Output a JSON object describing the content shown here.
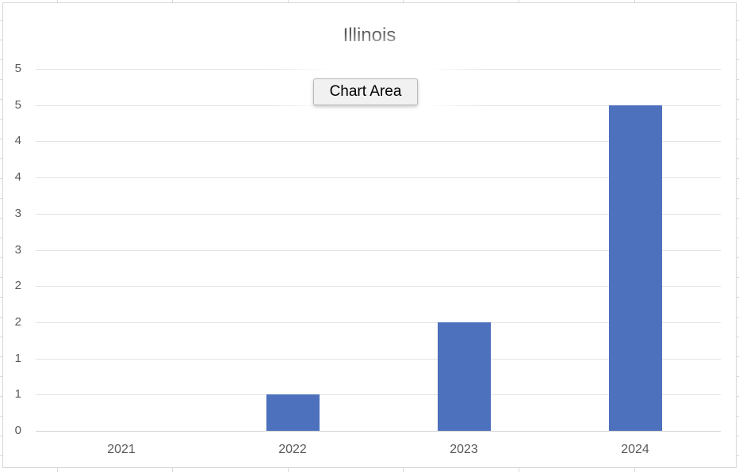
{
  "ui": {
    "tooltip": "Chart Area"
  },
  "chart_data": {
    "type": "bar",
    "title": "Illinois",
    "categories": [
      "2021",
      "2022",
      "2023",
      "2024"
    ],
    "values": [
      0,
      0.5,
      1.5,
      4.5
    ],
    "values_as_labeled_on_axis": [
      0,
      1,
      2,
      5
    ],
    "xlabel": "",
    "ylabel": "",
    "ylim": [
      0,
      5
    ],
    "y_major_unit": 0.5,
    "y_tick_labels_bottom_to_top": [
      "0",
      "1",
      "1",
      "2",
      "2",
      "3",
      "3",
      "4",
      "4",
      "5",
      "5"
    ],
    "grid": true,
    "legend": false,
    "bar_color": "#4d71bc",
    "text_color": "#595959"
  }
}
